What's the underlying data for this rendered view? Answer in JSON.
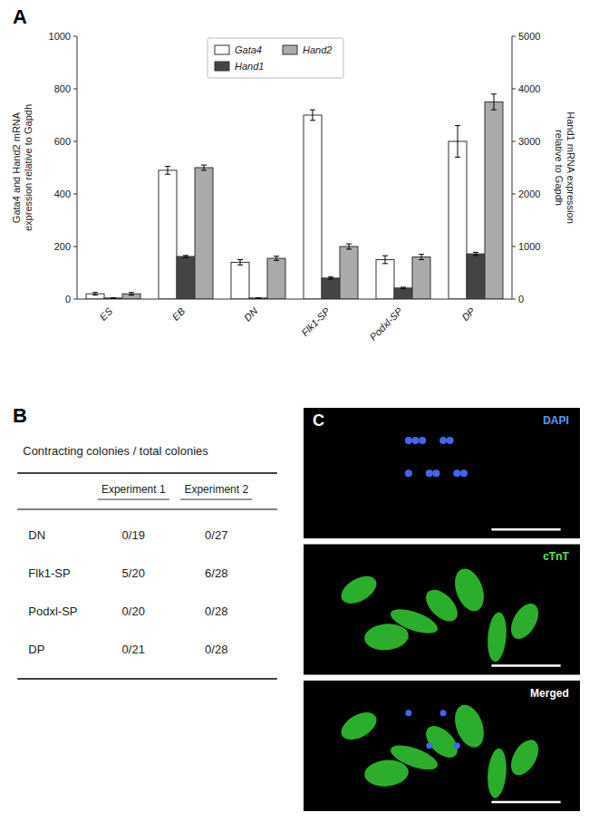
{
  "chart_data": [
    {
      "type": "bar",
      "title": "A",
      "categories": [
        "ES",
        "EB",
        "DN",
        "Flk1-SP",
        "Podxl-SP",
        "DP"
      ],
      "series": [
        {
          "name": "Gata4",
          "color": "#ffffff",
          "values": [
            20,
            490,
            140,
            700,
            150,
            600
          ],
          "errors": [
            5,
            15,
            10,
            20,
            15,
            60
          ]
        },
        {
          "name": "Hand1",
          "color": "#444444",
          "axis": "y2",
          "values": [
            20,
            810,
            20,
            400,
            210,
            860
          ],
          "errors": [
            5,
            20,
            5,
            20,
            15,
            30
          ]
        },
        {
          "name": "Hand2",
          "color": "#aaaaaa",
          "values": [
            20,
            500,
            155,
            200,
            160,
            750
          ],
          "errors": [
            5,
            10,
            8,
            10,
            10,
            30
          ]
        }
      ],
      "ylabel": "Gata4 and Hand2 mRNA\nexpression relative to Gapdh",
      "y2label": "Hand1 mRNA expression\nrelative to Gapdh",
      "ylim": [
        0,
        1000
      ],
      "yticks": [
        0,
        200,
        400,
        600,
        800,
        1000
      ],
      "y2lim": [
        0,
        5000
      ],
      "y2ticks": [
        0,
        1000,
        2000,
        3000,
        4000,
        5000
      ],
      "legend": "top",
      "grid": false
    },
    {
      "type": "table",
      "title": "B",
      "subtitle": "Contracting colonies / total colonies",
      "categories": [
        "DN",
        "Flk1-SP",
        "Podxl-SP",
        "DP"
      ],
      "series": [
        {
          "name": "Experiment 1",
          "values": [
            "0/19",
            "5/20",
            "0/20",
            "0/21"
          ]
        },
        {
          "name": "Experiment 2",
          "values": [
            "0/27",
            "6/28",
            "0/28",
            "0/28"
          ]
        }
      ]
    },
    {
      "type": "image",
      "title": "C",
      "annotations": [
        "DAPI",
        "cTnT",
        "Merged"
      ]
    }
  ]
}
